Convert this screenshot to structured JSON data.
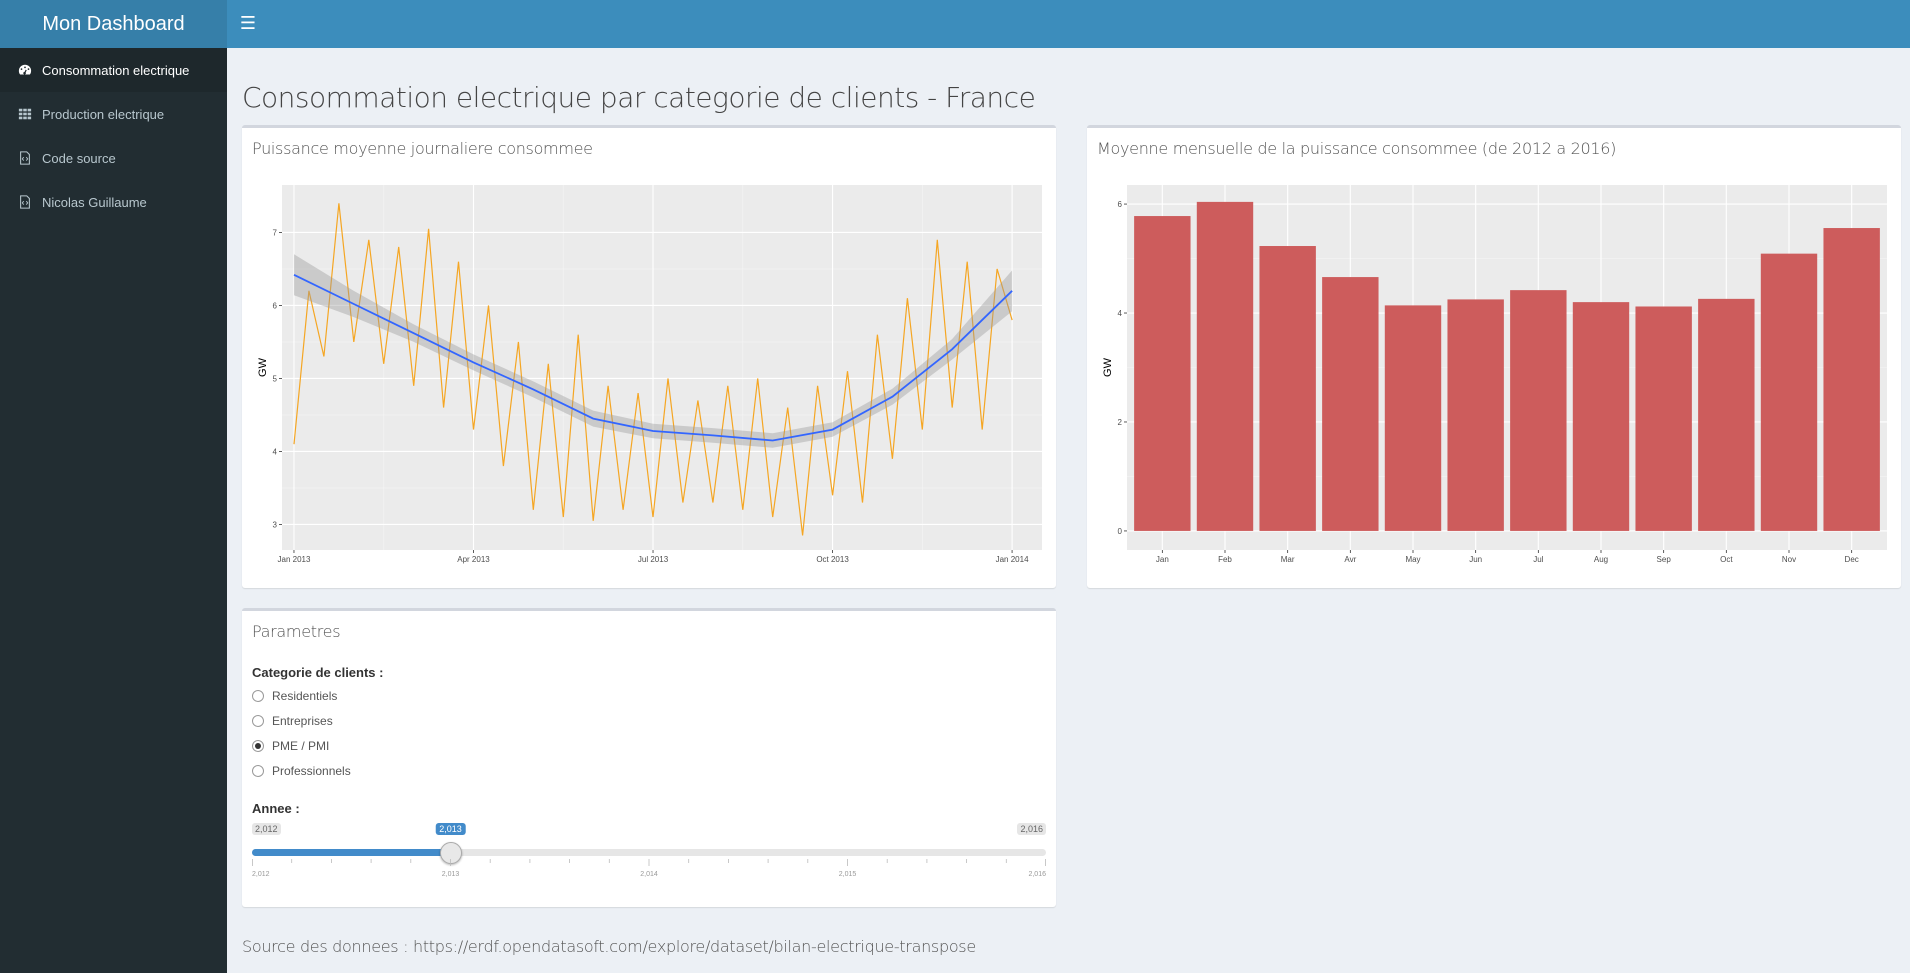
{
  "header": {
    "title": "Mon Dashboard",
    "toggle_icon": "menu-icon"
  },
  "sidebar": {
    "items": [
      {
        "label": "Consommation electrique",
        "icon": "dashboard-icon",
        "active": true
      },
      {
        "label": "Production electrique",
        "icon": "grid-icon",
        "active": false
      },
      {
        "label": "Code source",
        "icon": "file-code-icon",
        "active": false
      },
      {
        "label": "Nicolas Guillaume",
        "icon": "file-code-icon",
        "active": false
      }
    ]
  },
  "main": {
    "title": "Consommation electrique par categorie de clients - France",
    "line_box_title": "Puissance moyenne journaliere consommee",
    "bar_box_title": "Moyenne mensuelle de la puissance consommee (de 2012 a 2016)",
    "params": {
      "title": "Parametres",
      "category_label": "Categorie de clients :",
      "options": [
        "Residentiels",
        "Entreprises",
        "PME / PMI",
        "Professionnels"
      ],
      "selected": "PME / PMI",
      "year_label": "Annee :",
      "year_min": "2,012",
      "year_max": "2,016",
      "year_value": "2,013",
      "year_value_fraction": 0.25,
      "year_ticks": [
        "2,012",
        "2,013",
        "2,014",
        "2,015",
        "2,016"
      ]
    },
    "source": {
      "prefix": "Source des donnees : ",
      "link": "https://erdf.opendatasoft.com/explore/dataset/bilan-electrique-transpose"
    }
  },
  "colors": {
    "header": "#3c8dbc",
    "logo": "#367fa9",
    "sidebar": "#222d32",
    "daily_line": "#f5a623",
    "smooth_line": "#3366ff",
    "bar_fill": "#cd5c5c",
    "panel_bg": "#ebebeb"
  },
  "chart_data": [
    {
      "type": "line",
      "title": "Puissance moyenne journaliere consommee",
      "xlabel": "",
      "ylabel": "GW",
      "x_ticks": [
        "Jan 2013",
        "Apr 2013",
        "Jul 2013",
        "Oct 2013",
        "Jan 2014"
      ],
      "y_ticks": [
        3,
        4,
        5,
        6,
        7
      ],
      "xlim_months": [
        -0.2,
        12.5
      ],
      "ylim": [
        2.65,
        7.65
      ],
      "series": [
        {
          "name": "daily",
          "x_months": [
            0.0,
            0.25,
            0.5,
            0.75,
            1.0,
            1.25,
            1.5,
            1.75,
            2.0,
            2.25,
            2.5,
            2.75,
            3.0,
            3.25,
            3.5,
            3.75,
            4.0,
            4.25,
            4.5,
            4.75,
            5.0,
            5.25,
            5.5,
            5.75,
            6.0,
            6.25,
            6.5,
            6.75,
            7.0,
            7.25,
            7.5,
            7.75,
            8.0,
            8.25,
            8.5,
            8.75,
            9.0,
            9.25,
            9.5,
            9.75,
            10.0,
            10.25,
            10.5,
            10.75,
            11.0,
            11.25,
            11.5,
            11.75,
            12.0
          ],
          "values": [
            4.1,
            6.2,
            5.3,
            7.4,
            5.5,
            6.9,
            5.2,
            6.8,
            4.9,
            7.05,
            4.6,
            6.6,
            4.3,
            6.0,
            3.8,
            5.5,
            3.2,
            5.2,
            3.1,
            5.6,
            3.05,
            4.9,
            3.2,
            4.8,
            3.1,
            5.0,
            3.3,
            4.7,
            3.3,
            4.9,
            3.2,
            5.0,
            3.1,
            4.6,
            2.85,
            4.9,
            3.4,
            5.1,
            3.3,
            5.6,
            3.9,
            6.1,
            4.3,
            6.9,
            4.6,
            6.6,
            4.3,
            6.5,
            5.8
          ]
        },
        {
          "name": "smooth",
          "x_months": [
            0,
            1,
            2,
            3,
            4,
            5,
            6,
            7,
            8,
            9,
            10,
            11,
            12
          ],
          "values": [
            6.42,
            6.02,
            5.62,
            5.22,
            4.85,
            4.45,
            4.28,
            4.22,
            4.15,
            4.3,
            4.75,
            5.4,
            6.2
          ],
          "band_halfwidth": [
            0.28,
            0.18,
            0.12,
            0.11,
            0.11,
            0.11,
            0.1,
            0.1,
            0.1,
            0.1,
            0.11,
            0.14,
            0.28
          ]
        }
      ]
    },
    {
      "type": "bar",
      "title": "Moyenne mensuelle de la puissance consommee (de 2012 a 2016)",
      "xlabel": "",
      "ylabel": "GW",
      "categories": [
        "Jan",
        "Feb",
        "Mar",
        "Avr",
        "May",
        "Jun",
        "Jul",
        "Aug",
        "Sep",
        "Oct",
        "Nov",
        "Dec"
      ],
      "values": [
        5.78,
        6.04,
        5.23,
        4.66,
        4.14,
        4.25,
        4.42,
        4.2,
        4.12,
        4.26,
        5.09,
        5.56
      ],
      "y_ticks": [
        0,
        2,
        4,
        6
      ],
      "ylim": [
        -0.35,
        6.35
      ]
    }
  ]
}
